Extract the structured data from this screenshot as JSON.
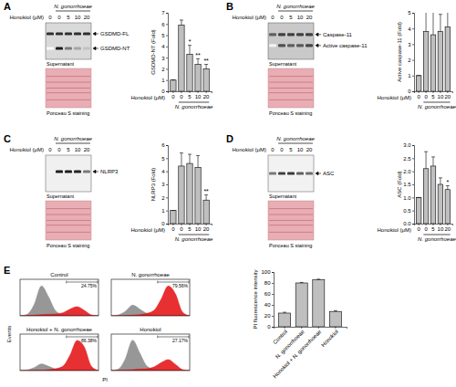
{
  "chart_data": [
    {
      "type": "bar",
      "y_label": "GSDMD-NT (Fold)",
      "x_label": "Honokiol (μM)",
      "group_label": "N. gonorrhoeae",
      "categories": [
        "0",
        "0",
        "5",
        "10",
        "20"
      ],
      "values": [
        1,
        5.9,
        3.3,
        2.4,
        2.0
      ],
      "errors": [
        0,
        0.45,
        0.8,
        0.5,
        0.4
      ],
      "significance": [
        null,
        null,
        "*",
        "**",
        "**"
      ],
      "ylim": [
        0,
        7
      ],
      "yticks": [
        0,
        1,
        2,
        3,
        4,
        5,
        6,
        7
      ],
      "color": "#bfbfbf"
    },
    {
      "type": "bar",
      "y_label": "Active caspase-11 (Fold)",
      "x_label": "Honokiol (μM)",
      "group_label": "N. gonorrhoeae",
      "categories": [
        "0",
        "0",
        "5",
        "10",
        "20"
      ],
      "values": [
        1,
        3.8,
        3.6,
        3.8,
        4.1
      ],
      "errors": [
        0,
        1.3,
        1.5,
        1.1,
        1.2
      ],
      "ylim": [
        0,
        5
      ],
      "yticks": [
        0,
        1,
        2,
        3,
        4,
        5
      ],
      "color": "#bfbfbf"
    },
    {
      "type": "bar",
      "y_label": "NLRP3 (Fold)",
      "x_label": "Honokiol (μM)",
      "group_label": "N. gonorrhoeae",
      "categories": [
        "0",
        "0",
        "5",
        "10",
        "20"
      ],
      "values": [
        1,
        4.4,
        4.6,
        4.3,
        1.8
      ],
      "errors": [
        0,
        1.0,
        0.7,
        0.9,
        0.4
      ],
      "significance": [
        null,
        null,
        null,
        null,
        "**"
      ],
      "ylim": [
        0,
        6
      ],
      "yticks": [
        0,
        1,
        2,
        3,
        4,
        5,
        6
      ],
      "color": "#bfbfbf"
    },
    {
      "type": "bar",
      "y_label": "ASC (Fold)",
      "x_label": "Honokiol (μM)",
      "group_label": "N. gonorrhoeae",
      "categories": [
        "0",
        "0",
        "5",
        "10",
        "20"
      ],
      "values": [
        1,
        2.1,
        2.2,
        1.5,
        1.3
      ],
      "errors": [
        0,
        0.65,
        0.35,
        0.25,
        0.15
      ],
      "significance": [
        null,
        null,
        null,
        null,
        "*"
      ],
      "ylim": [
        0,
        3
      ],
      "yticks": [
        {
          "value": 0,
          "label": "0.0"
        },
        0.5,
        {
          "value": 1,
          "label": "1.0"
        },
        1.5,
        {
          "value": 2,
          "label": "2.0"
        },
        2.5,
        {
          "value": 3,
          "label": "3.0"
        }
      ],
      "color": "#bfbfbf"
    },
    {
      "type": "bar",
      "y_label": "PI fluorescence intensity",
      "categories": [
        "Control",
        "N. gonorrhoeae",
        "Honokiol + N. gonorrhoeae",
        "Honokiol"
      ],
      "values": [
        25,
        80,
        86,
        28
      ],
      "errors": [
        1.5,
        1,
        1,
        1.5
      ],
      "ylim": [
        0,
        100
      ],
      "yticks": [
        0,
        20,
        40,
        60,
        80,
        100
      ],
      "color": "#bfbfbf"
    },
    {
      "type": "area",
      "title": "Control",
      "x": [
        0,
        1,
        2,
        3,
        4,
        5,
        6,
        7,
        8,
        9,
        10,
        11
      ],
      "xlim": [
        0,
        11
      ],
      "ylim": [
        0,
        120
      ],
      "tick_labels": false,
      "series": [
        {
          "color": "#8c8c8c",
          "values": [
            0,
            5,
            38,
            98,
            62,
            16,
            4,
            2,
            1,
            0,
            0,
            0
          ]
        },
        {
          "color": "#e31a1c",
          "values": [
            0,
            1,
            2,
            4,
            5,
            6,
            10,
            22,
            30,
            18,
            3,
            0
          ]
        }
      ],
      "gate": [
        6.5,
        11
      ],
      "gate_label": "24.75%"
    },
    {
      "type": "area",
      "title": "N. gonorrhoeae",
      "x": [
        0,
        1,
        2,
        3,
        4,
        5,
        6,
        7,
        8,
        9,
        10,
        11
      ],
      "xlim": [
        0,
        11
      ],
      "ylim": [
        0,
        120
      ],
      "tick_labels": false,
      "series": [
        {
          "color": "#8c8c8c",
          "values": [
            0,
            3,
            15,
            35,
            22,
            8,
            3,
            1,
            0,
            0,
            0,
            0
          ]
        },
        {
          "color": "#e31a1c",
          "values": [
            0,
            0,
            1,
            2,
            4,
            8,
            18,
            55,
            98,
            72,
            12,
            0
          ]
        }
      ],
      "gate": [
        6.5,
        11
      ],
      "gate_label": "79.56%"
    },
    {
      "type": "area",
      "title": "Honokiol + N. gonorrhoeae",
      "x": [
        0,
        1,
        2,
        3,
        4,
        5,
        6,
        7,
        8,
        9,
        10,
        11
      ],
      "xlim": [
        0,
        11
      ],
      "ylim": [
        0,
        120
      ],
      "tick_labels": false,
      "series": [
        {
          "color": "#8c8c8c",
          "values": [
            0,
            2,
            10,
            22,
            14,
            5,
            2,
            1,
            0,
            0,
            0,
            0
          ]
        },
        {
          "color": "#e31a1c",
          "values": [
            0,
            0,
            1,
            1,
            3,
            6,
            14,
            50,
            99,
            78,
            14,
            0
          ]
        }
      ],
      "gate": [
        6.5,
        11
      ],
      "gate_label": "86.38%"
    },
    {
      "type": "area",
      "title": "Honokiol",
      "x": [
        0,
        1,
        2,
        3,
        4,
        5,
        6,
        7,
        8,
        9,
        10,
        11
      ],
      "xlim": [
        0,
        11
      ],
      "ylim": [
        0,
        120
      ],
      "tick_labels": false,
      "series": [
        {
          "color": "#8c8c8c",
          "values": [
            0,
            5,
            40,
            100,
            58,
            15,
            4,
            1,
            0,
            0,
            0,
            0
          ]
        },
        {
          "color": "#e31a1c",
          "values": [
            0,
            1,
            2,
            3,
            5,
            6,
            12,
            26,
            36,
            20,
            3,
            0
          ]
        }
      ],
      "gate": [
        6.5,
        11
      ],
      "gate_label": "27.17%"
    }
  ],
  "blots": [
    {
      "letter": "A",
      "group_label": "N. gonorrhoeae",
      "x_label": "Honokiol (μM)",
      "lanes": [
        "0",
        "0",
        "5",
        "10",
        "20"
      ],
      "band_labels": [
        "GSDMD-FL",
        "GSDMD-NT"
      ],
      "fraction": "Supernatant",
      "loading": "Ponceau S staining"
    },
    {
      "letter": "B",
      "group_label": "N. gonorrhoeae",
      "x_label": "Honokiol (μM)",
      "lanes": [
        "0",
        "0",
        "5",
        "10",
        "20"
      ],
      "band_labels": [
        "Caspase-11",
        "Active caspase-11"
      ],
      "fraction": "Supernatant",
      "loading": "Ponceau S staining"
    },
    {
      "letter": "C",
      "group_label": "N. gonorrhoeae",
      "x_label": "Honokiol (μM)",
      "lanes": [
        "0",
        "0",
        "5",
        "10",
        "20"
      ],
      "band_labels": [
        "NLRP3"
      ],
      "fraction": "Supernatant",
      "loading": "Ponceau S staining"
    },
    {
      "letter": "D",
      "group_label": "N. gonorrhoeae",
      "x_label": "Honokiol (μM)",
      "lanes": [
        "0",
        "0",
        "5",
        "10",
        "20"
      ],
      "band_labels": [
        "ASC"
      ],
      "fraction": "Supernatant",
      "loading": "Ponceau S staining"
    }
  ],
  "flow": {
    "letter": "E",
    "x_label": "PI",
    "y_label": "Events"
  }
}
